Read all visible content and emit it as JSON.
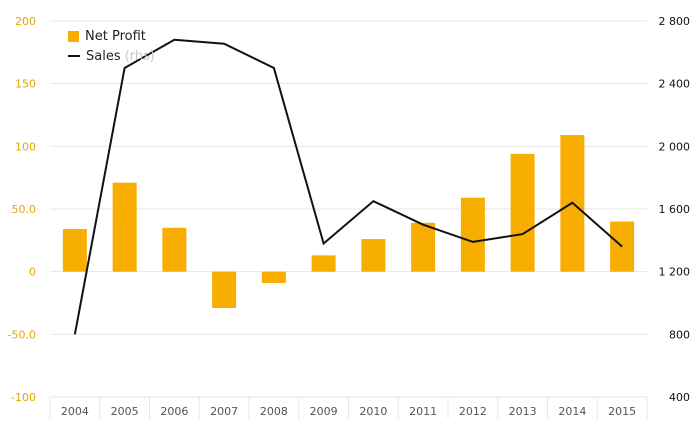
{
  "colors": {
    "bar": "#F7AE00",
    "line": "#111111",
    "grid": "#E6E6E6",
    "left_axis_text": "#E3A700",
    "right_axis_text": "#111111",
    "category_text": "#555555"
  },
  "legend": {
    "items": [
      {
        "label": "Net Profit",
        "suffix": ""
      },
      {
        "label": "Sales",
        "suffix": "(rhs)"
      }
    ]
  },
  "chart_data": {
    "type": "bar",
    "title": "",
    "xlabel": "",
    "ylabel": "",
    "categories": [
      "2004",
      "2005",
      "2006",
      "2007",
      "2008",
      "2009",
      "2010",
      "2011",
      "2012",
      "2013",
      "2014",
      "2015"
    ],
    "series": [
      {
        "name": "Net Profit",
        "type": "bar",
        "axis": "left",
        "values": [
          34,
          71,
          35,
          -29,
          -9,
          13,
          26,
          39,
          59,
          94,
          109,
          40
        ]
      },
      {
        "name": "Sales",
        "type": "line",
        "axis": "right",
        "values": [
          800,
          2500,
          2680,
          2655,
          2500,
          1380,
          1650,
          1500,
          1390,
          1440,
          1640,
          1360
        ]
      }
    ],
    "ylim": [
      -100,
      200
    ],
    "y2lim": [
      400,
      2800
    ],
    "left_ticks": [
      -100,
      -50,
      0,
      50,
      100,
      150,
      200
    ],
    "left_tick_labels": [
      "-100",
      "-50.0",
      "0",
      "50.0",
      "100",
      "150",
      "200"
    ],
    "right_ticks": [
      400,
      800,
      1200,
      1600,
      2000,
      2400,
      2800
    ],
    "right_tick_labels": [
      "400",
      "800",
      "1 200",
      "1 600",
      "2 000",
      "2 400",
      "2 800"
    ],
    "grid": true,
    "legend_position": "top-left"
  }
}
